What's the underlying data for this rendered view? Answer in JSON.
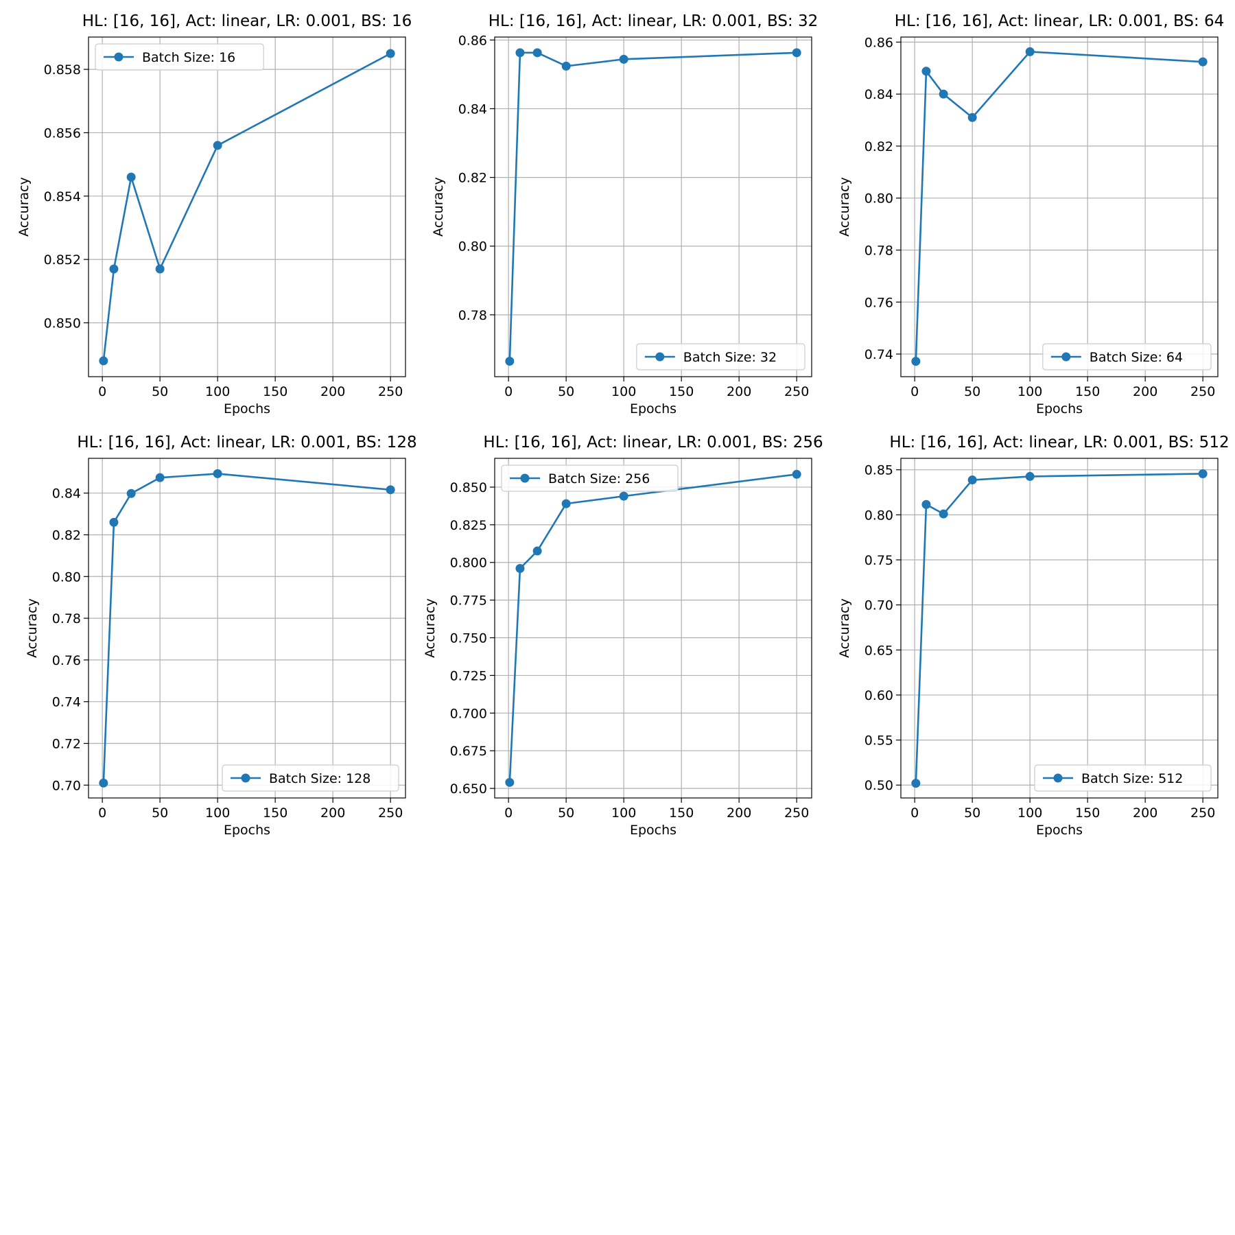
{
  "style": {
    "line_color": "#1f77b4",
    "grid_color": "#b0b0b0",
    "legend_border_color": "#cccccc"
  },
  "chart_data": [
    {
      "type": "line",
      "title": "HL: [16, 16], Act: linear, LR: 0.001, BS: 16",
      "xlabel": "Epochs",
      "ylabel": "Accuracy",
      "x": [
        1,
        10,
        25,
        50,
        100,
        250
      ],
      "series": [
        {
          "name": "Batch Size: 16",
          "values": [
            0.8488,
            0.8517,
            0.8546,
            0.8517,
            0.8556,
            0.8585
          ]
        }
      ],
      "xlim": [
        -12,
        263
      ],
      "ylim": [
        0.8483,
        0.85902
      ],
      "xticks": [
        0,
        50,
        100,
        150,
        200,
        250
      ],
      "xtick_labels": [
        "0",
        "50",
        "100",
        "150",
        "200",
        "250"
      ],
      "yticks": [
        0.85,
        0.852,
        0.854,
        0.856,
        0.858
      ],
      "ytick_labels": [
        "0.850",
        "0.852",
        "0.854",
        "0.856",
        "0.858"
      ],
      "legend": "upper-left",
      "grid": true
    },
    {
      "type": "line",
      "title": "HL: [16, 16], Act: linear, LR: 0.001, BS: 32",
      "xlabel": "Epochs",
      "ylabel": "Accuracy",
      "x": [
        1,
        10,
        25,
        50,
        100,
        250
      ],
      "series": [
        {
          "name": "Batch Size: 32",
          "values": [
            0.7665,
            0.8563,
            0.8563,
            0.8524,
            0.8544,
            0.8563
          ]
        }
      ],
      "xlim": [
        -12,
        263
      ],
      "ylim": [
        0.762,
        0.86086
      ],
      "xticks": [
        0,
        50,
        100,
        150,
        200,
        250
      ],
      "xtick_labels": [
        "0",
        "50",
        "100",
        "150",
        "200",
        "250"
      ],
      "yticks": [
        0.78,
        0.8,
        0.82,
        0.84,
        0.86
      ],
      "ytick_labels": [
        "0.78",
        "0.80",
        "0.82",
        "0.84",
        "0.86"
      ],
      "legend": "lower-right",
      "grid": true
    },
    {
      "type": "line",
      "title": "HL: [16, 16], Act: linear, LR: 0.001, BS: 64",
      "xlabel": "Epochs",
      "ylabel": "Accuracy",
      "x": [
        1,
        10,
        25,
        50,
        100,
        250
      ],
      "series": [
        {
          "name": "Batch Size: 64",
          "values": [
            0.7372,
            0.8488,
            0.84,
            0.831,
            0.8563,
            0.8524
          ]
        }
      ],
      "xlim": [
        -12,
        263
      ],
      "ylim": [
        0.7313,
        0.86194
      ],
      "xticks": [
        0,
        50,
        100,
        150,
        200,
        250
      ],
      "xtick_labels": [
        "0",
        "50",
        "100",
        "150",
        "200",
        "250"
      ],
      "yticks": [
        0.74,
        0.76,
        0.78,
        0.8,
        0.82,
        0.84,
        0.86
      ],
      "ytick_labels": [
        "0.74",
        "0.76",
        "0.78",
        "0.80",
        "0.82",
        "0.84",
        "0.86"
      ],
      "legend": "lower-right",
      "grid": true
    },
    {
      "type": "line",
      "title": "HL: [16, 16], Act: linear, LR: 0.001, BS: 128",
      "xlabel": "Epochs",
      "ylabel": "Accuracy",
      "x": [
        1,
        10,
        25,
        50,
        100,
        250
      ],
      "series": [
        {
          "name": "Batch Size: 128",
          "values": [
            0.701,
            0.826,
            0.8398,
            0.8474,
            0.8493,
            0.8416
          ]
        }
      ],
      "xlim": [
        -12,
        263
      ],
      "ylim": [
        0.69385,
        0.85667
      ],
      "xticks": [
        0,
        50,
        100,
        150,
        200,
        250
      ],
      "xtick_labels": [
        "0",
        "50",
        "100",
        "150",
        "200",
        "250"
      ],
      "yticks": [
        0.7,
        0.72,
        0.74,
        0.76,
        0.78,
        0.8,
        0.82,
        0.84
      ],
      "ytick_labels": [
        "0.70",
        "0.72",
        "0.74",
        "0.76",
        "0.78",
        "0.80",
        "0.82",
        "0.84"
      ],
      "legend": "lower-right",
      "grid": true
    },
    {
      "type": "line",
      "title": "HL: [16, 16], Act: linear, LR: 0.001, BS: 256",
      "xlabel": "Epochs",
      "ylabel": "Accuracy",
      "x": [
        1,
        10,
        25,
        50,
        100,
        250
      ],
      "series": [
        {
          "name": "Batch Size: 256",
          "values": [
            0.654,
            0.796,
            0.8076,
            0.839,
            0.844,
            0.8585
          ]
        }
      ],
      "xlim": [
        -12,
        263
      ],
      "ylim": [
        0.64367,
        0.86911
      ],
      "xticks": [
        0,
        50,
        100,
        150,
        200,
        250
      ],
      "xtick_labels": [
        "0",
        "50",
        "100",
        "150",
        "200",
        "250"
      ],
      "yticks": [
        0.65,
        0.675,
        0.7,
        0.725,
        0.75,
        0.775,
        0.8,
        0.825,
        0.85
      ],
      "ytick_labels": [
        "0.650",
        "0.675",
        "0.700",
        "0.725",
        "0.750",
        "0.775",
        "0.800",
        "0.825",
        "0.850"
      ],
      "legend": "upper-left",
      "grid": true
    },
    {
      "type": "line",
      "title": "HL: [16, 16], Act: linear, LR: 0.001, BS: 512",
      "xlabel": "Epochs",
      "ylabel": "Accuracy",
      "x": [
        1,
        10,
        25,
        50,
        100,
        250
      ],
      "series": [
        {
          "name": "Batch Size: 512",
          "values": [
            0.502,
            0.8115,
            0.801,
            0.8387,
            0.8426,
            0.8456
          ]
        }
      ],
      "xlim": [
        -12,
        263
      ],
      "ylim": [
        0.48571,
        0.86272
      ],
      "xticks": [
        0,
        50,
        100,
        150,
        200,
        250
      ],
      "xtick_labels": [
        "0",
        "50",
        "100",
        "150",
        "200",
        "250"
      ],
      "yticks": [
        0.5,
        0.55,
        0.6,
        0.65,
        0.7,
        0.75,
        0.8,
        0.85
      ],
      "ytick_labels": [
        "0.50",
        "0.55",
        "0.60",
        "0.65",
        "0.70",
        "0.75",
        "0.80",
        "0.85"
      ],
      "legend": "lower-right",
      "grid": true
    }
  ]
}
